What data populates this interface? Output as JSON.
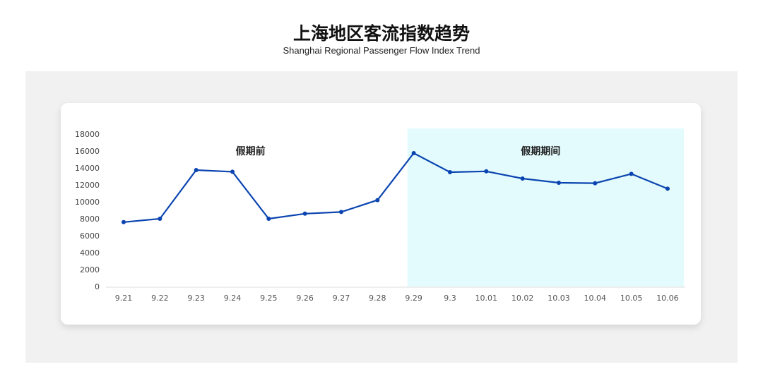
{
  "header": {
    "title": "上海地区客流指数趋势",
    "subtitle": "Shanghai Regional Passenger Flow Index Trend"
  },
  "chart_data": {
    "type": "line",
    "categories": [
      "9.21",
      "9.22",
      "9.23",
      "9.24",
      "9.25",
      "9.26",
      "9.27",
      "9.28",
      "9.29",
      "9.3",
      "10.01",
      "10.02",
      "10.03",
      "10.04",
      "10.05",
      "10.06"
    ],
    "values": [
      7600,
      8000,
      13750,
      13550,
      8000,
      8600,
      8800,
      10200,
      15750,
      13500,
      13600,
      12750,
      12250,
      12200,
      13300,
      11550
    ],
    "ylim": [
      0,
      18000
    ],
    "yticks": [
      0,
      2000,
      4000,
      6000,
      8000,
      10000,
      12000,
      14000,
      16000,
      18000
    ],
    "annotations": [
      {
        "text": "假期前",
        "range": [
          "9.21",
          "9.28"
        ]
      },
      {
        "text": "假期期间",
        "range": [
          "9.29",
          "10.06"
        ],
        "shaded": true
      }
    ],
    "colors": {
      "line": "#0a44b0",
      "shade": "#e3fbfd"
    },
    "grid": false
  }
}
